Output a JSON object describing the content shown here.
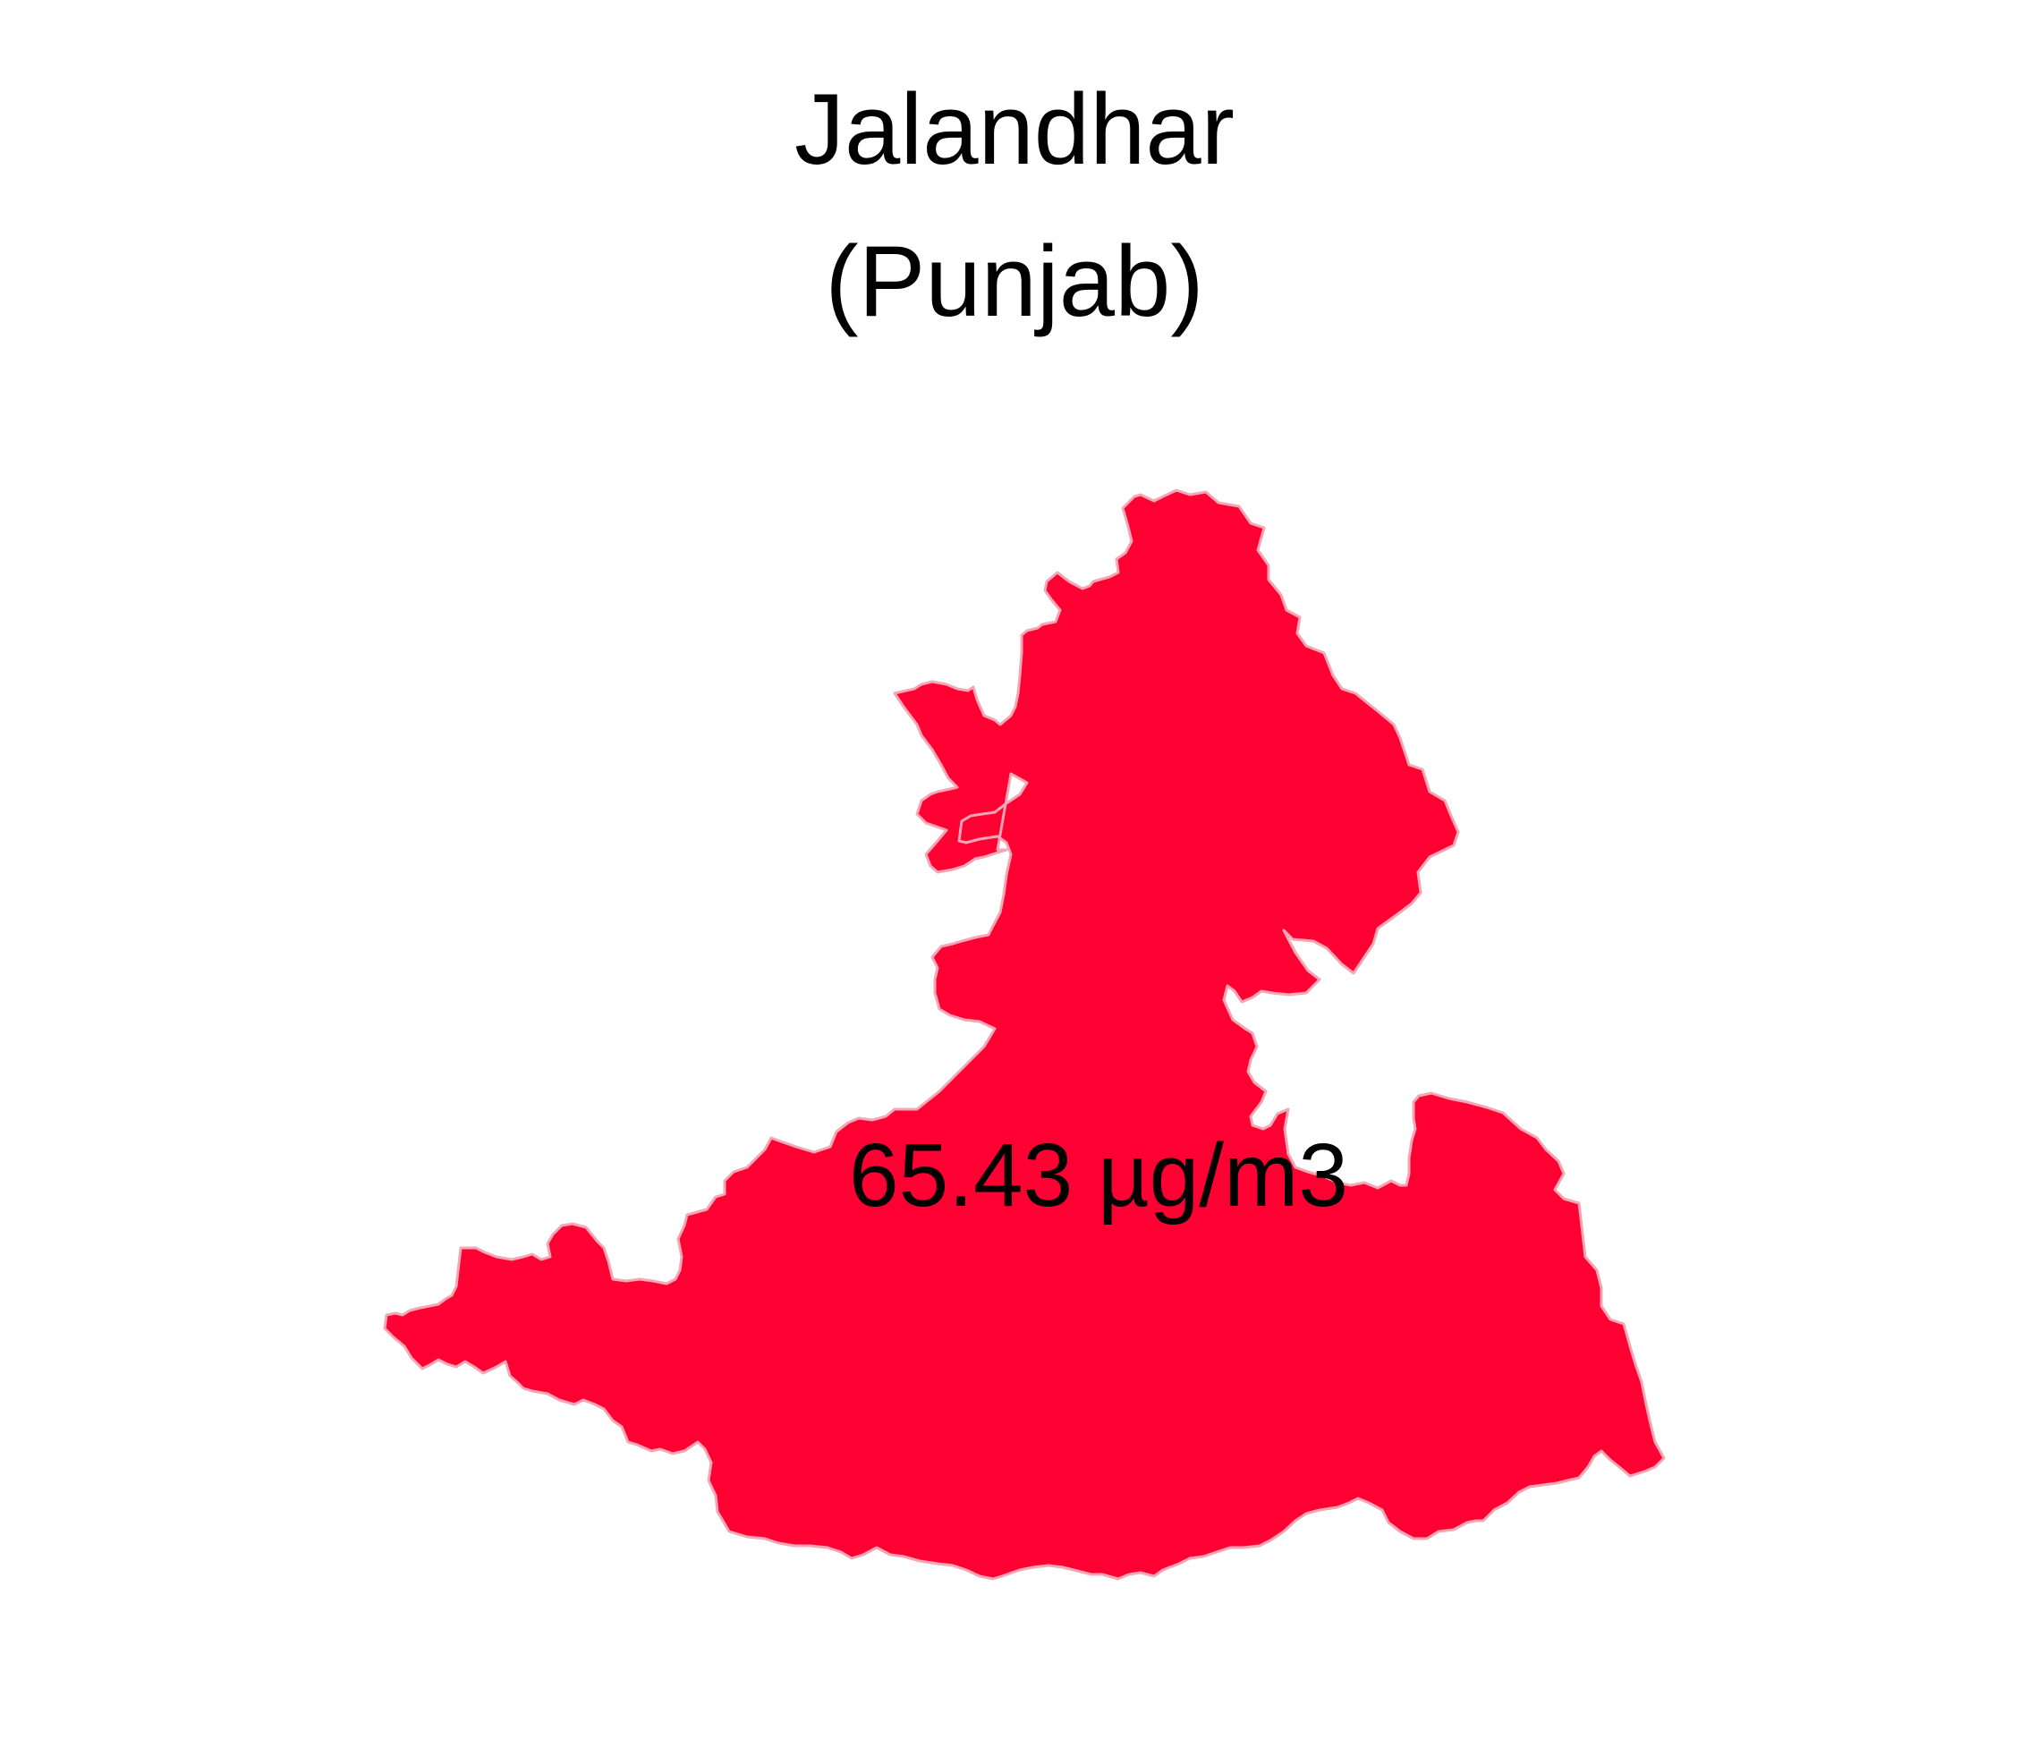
{
  "map": {
    "title": "Jalandhar",
    "subtitle": "(Punjab)",
    "region_value_label": "65.43 µg/m3",
    "region_fill_color": "#FF0033",
    "region_stroke_color": "#F4A6B4"
  }
}
